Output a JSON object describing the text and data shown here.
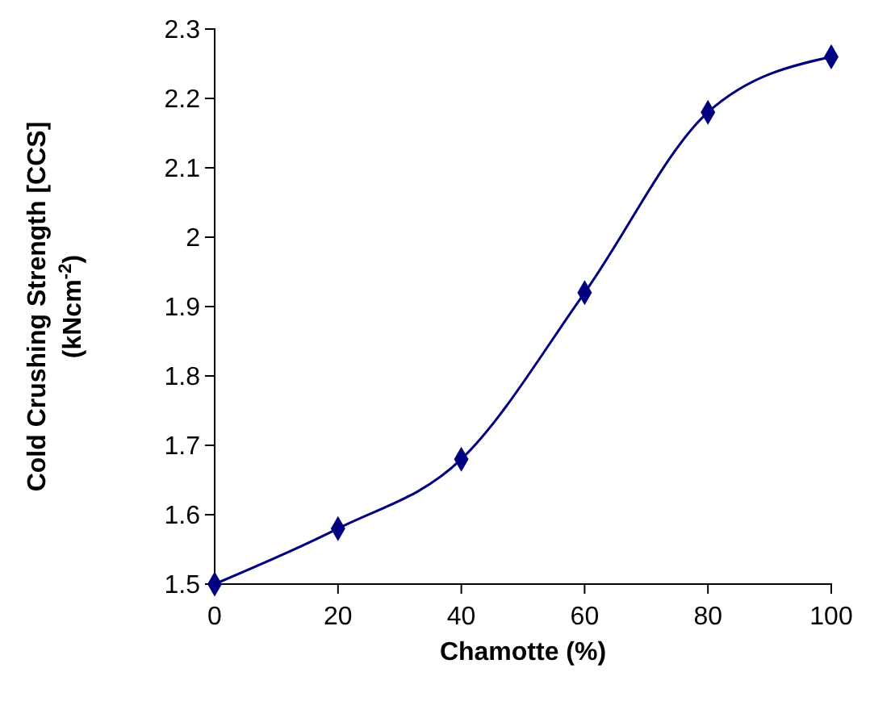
{
  "chart_data": {
    "type": "line",
    "xlabel": "Chamotte (%)",
    "ylabel": "Cold Crushing Strength [CCS]\n(kNcm$^{-2}$)",
    "x": [
      0,
      20,
      40,
      60,
      80,
      100
    ],
    "series": [
      {
        "color": "#000080",
        "values": [
          1.5,
          1.58,
          1.68,
          1.92,
          2.18,
          2.26
        ]
      }
    ],
    "xlim": [
      0,
      100
    ],
    "xticks": [
      0,
      20,
      40,
      60,
      80,
      100
    ],
    "ylim": [
      1.5,
      2.3
    ],
    "yticks": [
      1.5,
      1.6,
      1.7,
      1.8,
      1.9,
      2,
      2.1,
      2.2,
      2.3
    ],
    "grid": false,
    "marker": "diamond",
    "line_style": "solid"
  }
}
